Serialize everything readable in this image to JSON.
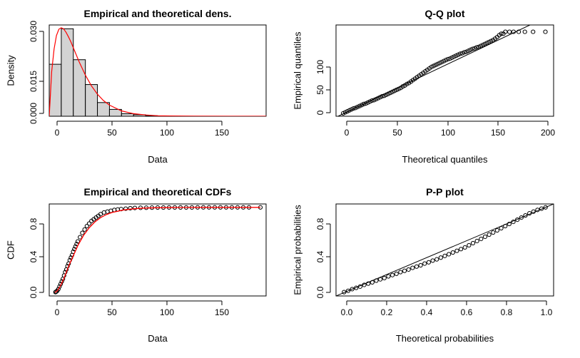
{
  "chart_data": [
    {
      "type": "bar",
      "id": "density",
      "title": "Empirical and theoretical dens.",
      "xlabel": "Data",
      "ylabel": "Density",
      "xlim": [
        0,
        180
      ],
      "ylim": [
        0,
        0.036
      ],
      "xticks": [
        "0",
        "50",
        "100",
        "150"
      ],
      "yticks": [
        "0.000",
        "0.015",
        "0.030"
      ],
      "histogram": {
        "bin_edges": [
          0,
          10,
          20,
          30,
          40,
          50,
          60,
          70,
          80,
          90
        ],
        "density": [
          0.0205,
          0.0345,
          0.0223,
          0.0125,
          0.0054,
          0.0027,
          0.001,
          0.0006,
          0.0002
        ],
        "fill": "#d3d3d3"
      },
      "series": [
        {
          "curve": "theoretical density",
          "color": "#ff0000",
          "x": [
            0,
            2,
            4,
            6,
            8,
            10,
            12,
            14,
            16,
            18,
            20,
            25,
            30,
            35,
            40,
            45,
            50,
            60,
            70,
            80,
            90,
            100,
            120,
            150,
            180
          ],
          "y": [
            0,
            0.0175,
            0.0265,
            0.0318,
            0.0343,
            0.0349,
            0.0344,
            0.0331,
            0.0313,
            0.0293,
            0.027,
            0.0213,
            0.0162,
            0.012,
            0.0087,
            0.0062,
            0.0044,
            0.0021,
            0.001,
            0.0005,
            0.0002,
            0.0001,
            2e-05,
            0,
            0
          ]
        }
      ]
    },
    {
      "type": "scatter",
      "id": "qq",
      "title": "Q-Q plot",
      "xlabel": "Theoretical quantiles",
      "ylabel": "Empirical quantiles",
      "xlim": [
        -6,
        206
      ],
      "ylim": [
        -4,
        183
      ],
      "xticks": [
        "0",
        "50",
        "100",
        "150",
        "200"
      ],
      "yticks": [
        "0",
        "50",
        "100"
      ],
      "reference_line": "y = x",
      "series": [
        {
          "x": [
            1,
            3,
            5,
            7,
            9,
            11,
            13,
            15,
            17,
            19,
            21,
            23,
            25,
            27,
            29,
            31,
            33,
            35,
            37,
            39,
            41,
            43,
            45,
            47,
            49,
            51,
            53,
            55,
            57,
            59,
            61,
            63,
            65,
            67,
            69,
            71,
            73,
            75,
            77,
            79,
            81,
            83,
            85,
            87,
            89,
            91,
            93,
            95,
            97,
            99,
            101,
            103,
            105,
            107,
            109,
            111,
            113,
            115,
            117,
            119,
            121,
            123,
            125,
            127,
            129,
            131,
            133,
            135,
            137,
            139,
            141,
            143,
            145,
            147,
            149,
            151,
            153,
            155,
            157,
            159,
            163,
            167,
            172,
            178,
            186,
            198
          ],
          "y": [
            2,
            4,
            6,
            8,
            10,
            12,
            13,
            15,
            17,
            19,
            21,
            22,
            24,
            26,
            28,
            29,
            31,
            33,
            35,
            37,
            38,
            40,
            42,
            44,
            46,
            48,
            50,
            52,
            54,
            57,
            59,
            62,
            64,
            67,
            70,
            73,
            76,
            79,
            82,
            85,
            88,
            91,
            94,
            97,
            99,
            101,
            103,
            105,
            107,
            109,
            111,
            113,
            114,
            116,
            118,
            120,
            122,
            124,
            125,
            127,
            128,
            130,
            132,
            134,
            135,
            137,
            138,
            140,
            142,
            144,
            146,
            148,
            150,
            152,
            155,
            158,
            162,
            165,
            165,
            169,
            169,
            169,
            169,
            169,
            169,
            169
          ]
        }
      ]
    },
    {
      "type": "scatter",
      "id": "cdf",
      "title": "Empirical and theoretical CDFs",
      "xlabel": "Data",
      "ylabel": "CDF",
      "xlim": [
        -5,
        185
      ],
      "ylim": [
        -0.04,
        1.04
      ],
      "xticks": [
        "0",
        "50",
        "100",
        "150"
      ],
      "yticks": [
        "0.0",
        "0.4",
        "0.8"
      ],
      "series": [
        {
          "curve": "empirical",
          "x": [
            0.5,
            1,
            2,
            3,
            4,
            5,
            6,
            7,
            8,
            9,
            10,
            11,
            12,
            13,
            14,
            15,
            16,
            17,
            18,
            19,
            20,
            22,
            24,
            26,
            28,
            30,
            32,
            34,
            36,
            38,
            40,
            43,
            46,
            49,
            52,
            55,
            58,
            62,
            66,
            70,
            75,
            80,
            85,
            90,
            95,
            100,
            105,
            110,
            115,
            120,
            125,
            130,
            135,
            140,
            145,
            150,
            155,
            160,
            165,
            170,
            180
          ],
          "y": [
            0.005,
            0.01,
            0.02,
            0.04,
            0.07,
            0.1,
            0.13,
            0.16,
            0.2,
            0.24,
            0.27,
            0.31,
            0.34,
            0.38,
            0.41,
            0.44,
            0.48,
            0.51,
            0.54,
            0.57,
            0.6,
            0.65,
            0.7,
            0.74,
            0.78,
            0.81,
            0.84,
            0.86,
            0.88,
            0.9,
            0.92,
            0.94,
            0.95,
            0.96,
            0.97,
            0.975,
            0.98,
            0.985,
            0.99,
            0.993,
            0.995,
            0.996,
            0.997,
            0.998,
            0.998,
            0.999,
            0.999,
            0.999,
            0.999,
            0.999,
            1,
            1,
            1,
            1,
            1,
            1,
            1,
            1,
            1,
            1,
            1
          ]
        },
        {
          "curve": "theoretical",
          "color": "#ff0000",
          "x": [
            0,
            2,
            4,
            6,
            8,
            10,
            12,
            14,
            16,
            18,
            20,
            25,
            30,
            35,
            40,
            45,
            50,
            60,
            70,
            80,
            100,
            130,
            160,
            180
          ],
          "y": [
            0,
            0.02,
            0.06,
            0.11,
            0.17,
            0.24,
            0.31,
            0.37,
            0.43,
            0.49,
            0.55,
            0.67,
            0.76,
            0.83,
            0.88,
            0.915,
            0.94,
            0.97,
            0.985,
            0.993,
            0.998,
            1,
            1,
            1
          ]
        }
      ]
    },
    {
      "type": "scatter",
      "id": "pp",
      "title": "P-P plot",
      "xlabel": "Theoretical probabilities",
      "ylabel": "Empirical probabilities",
      "xlim": [
        -0.04,
        1.04
      ],
      "ylim": [
        -0.04,
        1.04
      ],
      "xticks": [
        "0.0",
        "0.2",
        "0.4",
        "0.6",
        "0.8",
        "1.0"
      ],
      "yticks": [
        "0.0",
        "0.4",
        "0.8"
      ],
      "reference_line": "y = x",
      "series": [
        {
          "x": [
            0.0,
            0.02,
            0.04,
            0.06,
            0.08,
            0.1,
            0.12,
            0.14,
            0.16,
            0.18,
            0.2,
            0.22,
            0.24,
            0.26,
            0.28,
            0.3,
            0.32,
            0.34,
            0.36,
            0.38,
            0.4,
            0.42,
            0.44,
            0.46,
            0.48,
            0.5,
            0.52,
            0.54,
            0.56,
            0.58,
            0.6,
            0.62,
            0.64,
            0.66,
            0.68,
            0.7,
            0.72,
            0.74,
            0.76,
            0.78,
            0.8,
            0.82,
            0.84,
            0.86,
            0.88,
            0.9,
            0.92,
            0.94,
            0.96,
            0.98,
            1.0
          ],
          "y": [
            0.005,
            0.02,
            0.04,
            0.055,
            0.07,
            0.09,
            0.105,
            0.12,
            0.14,
            0.155,
            0.17,
            0.19,
            0.205,
            0.22,
            0.24,
            0.255,
            0.27,
            0.29,
            0.305,
            0.32,
            0.34,
            0.355,
            0.375,
            0.39,
            0.41,
            0.43,
            0.45,
            0.47,
            0.49,
            0.51,
            0.53,
            0.555,
            0.58,
            0.605,
            0.63,
            0.655,
            0.68,
            0.705,
            0.73,
            0.755,
            0.78,
            0.805,
            0.83,
            0.855,
            0.88,
            0.905,
            0.93,
            0.95,
            0.97,
            0.985,
            1.0
          ]
        }
      ]
    }
  ]
}
